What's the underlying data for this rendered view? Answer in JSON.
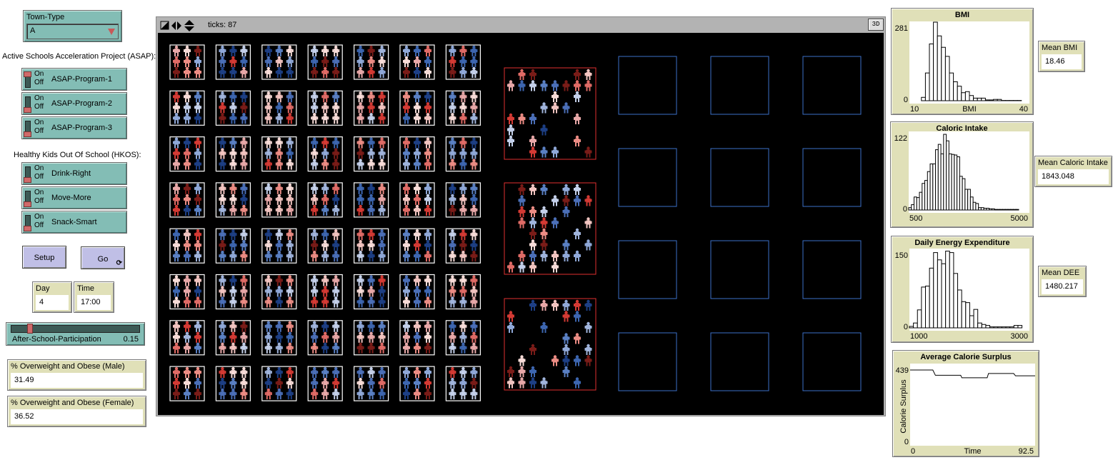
{
  "town_type": {
    "label": "Town-Type",
    "value": "A"
  },
  "asap": {
    "heading": "Active Schools Acceleration Project (ASAP):",
    "switches": [
      {
        "label": "ASAP-Program-1",
        "on": true
      },
      {
        "label": "ASAP-Program-2",
        "on": false
      },
      {
        "label": "ASAP-Program-3",
        "on": false
      }
    ]
  },
  "hkos": {
    "heading": "Healthy Kids Out Of School (HKOS):",
    "switches": [
      {
        "label": "Drink-Right",
        "on": false
      },
      {
        "label": "Move-More",
        "on": false
      },
      {
        "label": "Snack-Smart",
        "on": false
      }
    ]
  },
  "switch_text": {
    "on": "On",
    "off": "Off"
  },
  "buttons": {
    "setup": "Setup",
    "go": "Go"
  },
  "monitors": {
    "day": {
      "label": "Day",
      "value": "4"
    },
    "time": {
      "label": "Time",
      "value": "17:00"
    },
    "male": {
      "label": "% Overweight and Obese (Male)",
      "value": "31.49"
    },
    "female": {
      "label": "% Overweight and Obese (Female)",
      "value": "36.52"
    },
    "mean_bmi": {
      "label": "Mean BMI",
      "value": "18.46"
    },
    "mean_ci": {
      "label": "Mean Caloric Intake",
      "value": "1843.048"
    },
    "mean_dee": {
      "label": "Mean DEE",
      "value": "1480.217"
    }
  },
  "slider": {
    "label": "After-School-Participation",
    "value": 0.15,
    "value_text": "0.15",
    "min": 0,
    "max": 1
  },
  "world": {
    "ticks_text": "ticks: 87",
    "three_d": "3D",
    "colors": {
      "classroom": "#ffffff",
      "active": "#e03030",
      "empty": "#3b6fc9"
    }
  },
  "chart_data": [
    {
      "type": "bar",
      "title": "BMI",
      "xlabel": "BMI",
      "ylabel": "",
      "xlim": [
        10,
        40
      ],
      "ylim": [
        0,
        281
      ],
      "xtick_labels": [
        "10",
        "40"
      ],
      "ytick_labels": [
        "0",
        "281"
      ],
      "bin_start": 13,
      "bin_width": 1,
      "values": [
        13,
        107,
        219,
        303,
        250,
        206,
        171,
        107,
        73,
        56,
        31,
        35,
        20,
        10,
        10,
        10,
        3,
        3,
        5,
        5,
        1,
        1,
        1,
        1,
        1
      ]
    },
    {
      "type": "bar",
      "title": "Caloric Intake",
      "xlabel": "",
      "ylabel": "",
      "xlim": [
        500,
        5000
      ],
      "ylim": [
        0,
        122
      ],
      "xtick_labels": [
        "500",
        "5000"
      ],
      "ytick_labels": [
        "0",
        "122"
      ],
      "bin_start": 500,
      "bin_width": 100,
      "values": [
        4,
        9,
        22,
        21,
        30,
        45,
        50,
        65,
        78,
        78,
        102,
        111,
        95,
        128,
        117,
        95,
        94,
        93,
        90,
        57,
        53,
        35,
        35,
        22,
        13,
        11,
        4,
        4,
        3,
        3,
        2,
        2,
        1,
        1,
        1,
        1,
        1,
        1,
        1,
        1,
        1
      ]
    },
    {
      "type": "bar",
      "title": "Daily Energy Expenditure",
      "xlabel": "",
      "ylabel": "",
      "xlim": [
        1000,
        3000
      ],
      "ylim": [
        0,
        150
      ],
      "xtick_labels": [
        "1000",
        "3000"
      ],
      "ytick_labels": [
        "0",
        "150"
      ],
      "bin_start": 1000,
      "bin_width": 67,
      "values": [
        3,
        10,
        37,
        84,
        86,
        123,
        155,
        140,
        132,
        158,
        155,
        112,
        78,
        54,
        52,
        25,
        38,
        10,
        7,
        5,
        2,
        2,
        2,
        2,
        2,
        2,
        5,
        5
      ]
    },
    {
      "type": "line",
      "title": "Average Calorie Surplus",
      "xlabel": "Time",
      "ylabel": "Calorie Surplus",
      "xlim": [
        0,
        92.5
      ],
      "ylim": [
        0,
        439
      ],
      "xtick_labels": [
        "0",
        "92.5"
      ],
      "ytick_labels": [
        "0",
        "439"
      ],
      "x": [
        0,
        16.8,
        18.7,
        37.4,
        38.3,
        57,
        58,
        76.6,
        78,
        92.5
      ],
      "y": [
        439,
        439,
        407,
        407,
        392,
        392,
        418,
        418,
        404,
        404
      ]
    }
  ]
}
